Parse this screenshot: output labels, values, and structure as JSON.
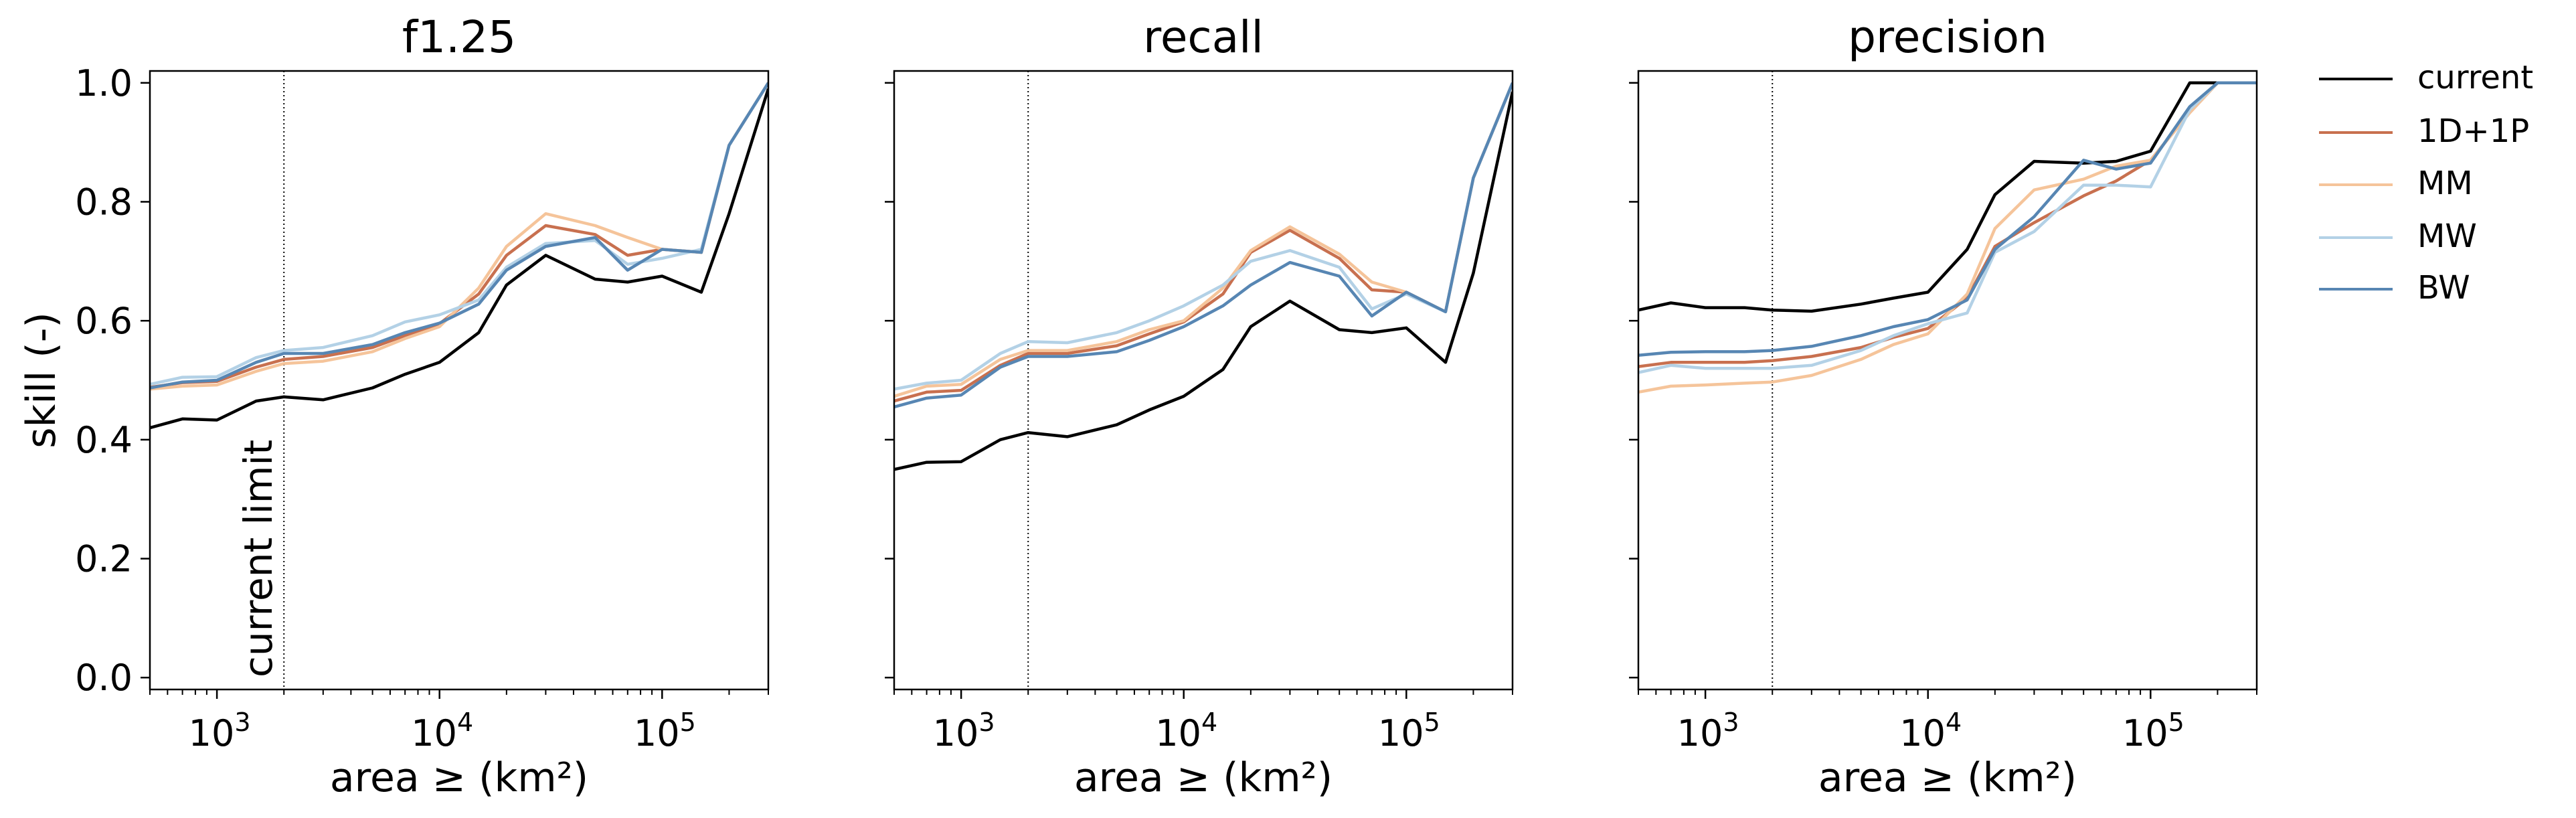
{
  "chart_data": [
    {
      "type": "line",
      "title": "f1.25",
      "xlabel": "area ≥ (km²)",
      "ylabel": "skill (-)",
      "xscale": "log",
      "xlim": [
        500,
        300000
      ],
      "ylim": [
        -0.02,
        1.02
      ],
      "yticks": [
        "0.0",
        "0.2",
        "0.4",
        "0.6",
        "0.8",
        "1.0"
      ],
      "xticks": [
        {
          "base": "10",
          "exp": "3"
        },
        {
          "base": "10",
          "exp": "4"
        },
        {
          "base": "10",
          "exp": "5"
        }
      ],
      "vline": {
        "x": 2000,
        "label": "current limit"
      },
      "x": [
        500,
        700,
        1000,
        1500,
        2000,
        3000,
        5000,
        7000,
        10000,
        15000,
        20000,
        30000,
        50000,
        70000,
        100000,
        150000,
        200000,
        300000
      ],
      "series": [
        {
          "name": "current",
          "values": [
            0.42,
            0.435,
            0.433,
            0.465,
            0.472,
            0.467,
            0.487,
            0.51,
            0.53,
            0.58,
            0.66,
            0.71,
            0.67,
            0.665,
            0.675,
            0.648,
            0.78,
            0.99
          ]
        },
        {
          "name": "1D+1P",
          "values": [
            0.488,
            0.496,
            0.498,
            0.522,
            0.535,
            0.54,
            0.555,
            0.575,
            0.595,
            0.645,
            0.71,
            0.76,
            0.745,
            0.71,
            0.72,
            0.715,
            0.895,
            1.0
          ]
        },
        {
          "name": "MM",
          "values": [
            0.485,
            0.49,
            0.492,
            0.515,
            0.528,
            0.532,
            0.548,
            0.57,
            0.59,
            0.655,
            0.725,
            0.78,
            0.76,
            0.74,
            0.72,
            0.715,
            0.895,
            1.0
          ]
        },
        {
          "name": "MW",
          "values": [
            0.493,
            0.505,
            0.506,
            0.538,
            0.55,
            0.555,
            0.575,
            0.598,
            0.61,
            0.635,
            0.69,
            0.73,
            0.735,
            0.695,
            0.705,
            0.72,
            0.895,
            1.0
          ]
        },
        {
          "name": "BW",
          "values": [
            0.487,
            0.497,
            0.5,
            0.53,
            0.545,
            0.545,
            0.56,
            0.58,
            0.596,
            0.628,
            0.685,
            0.725,
            0.74,
            0.685,
            0.72,
            0.715,
            0.895,
            1.0
          ]
        }
      ]
    },
    {
      "type": "line",
      "title": "recall",
      "xlabel": "area ≥ (km²)",
      "xscale": "log",
      "xlim": [
        500,
        300000
      ],
      "ylim": [
        -0.02,
        1.02
      ],
      "xticks": [
        {
          "base": "10",
          "exp": "3"
        },
        {
          "base": "10",
          "exp": "4"
        },
        {
          "base": "10",
          "exp": "5"
        }
      ],
      "vline": {
        "x": 2000
      },
      "x": [
        500,
        700,
        1000,
        1500,
        2000,
        3000,
        5000,
        7000,
        10000,
        15000,
        20000,
        30000,
        50000,
        70000,
        100000,
        150000,
        200000,
        300000
      ],
      "series": [
        {
          "name": "current",
          "values": [
            0.35,
            0.362,
            0.363,
            0.4,
            0.412,
            0.405,
            0.425,
            0.45,
            0.473,
            0.518,
            0.59,
            0.633,
            0.585,
            0.58,
            0.588,
            0.53,
            0.68,
            0.985
          ]
        },
        {
          "name": "1D+1P",
          "values": [
            0.465,
            0.48,
            0.483,
            0.525,
            0.545,
            0.545,
            0.558,
            0.578,
            0.598,
            0.645,
            0.715,
            0.752,
            0.705,
            0.652,
            0.648,
            0.615,
            0.84,
            1.0
          ]
        },
        {
          "name": "MM",
          "values": [
            0.473,
            0.49,
            0.493,
            0.535,
            0.55,
            0.55,
            0.565,
            0.585,
            0.6,
            0.655,
            0.718,
            0.758,
            0.712,
            0.665,
            0.648,
            0.615,
            0.84,
            1.0
          ]
        },
        {
          "name": "MW",
          "values": [
            0.485,
            0.495,
            0.5,
            0.545,
            0.565,
            0.563,
            0.58,
            0.6,
            0.625,
            0.66,
            0.7,
            0.718,
            0.69,
            0.62,
            0.645,
            0.615,
            0.84,
            1.0
          ]
        },
        {
          "name": "BW",
          "values": [
            0.455,
            0.47,
            0.475,
            0.522,
            0.54,
            0.54,
            0.548,
            0.567,
            0.59,
            0.625,
            0.66,
            0.698,
            0.675,
            0.608,
            0.648,
            0.615,
            0.84,
            1.0
          ]
        }
      ]
    },
    {
      "type": "line",
      "title": "precision",
      "xlabel": "area ≥ (km²)",
      "xscale": "log",
      "xlim": [
        500,
        300000
      ],
      "ylim": [
        -0.02,
        1.02
      ],
      "xticks": [
        {
          "base": "10",
          "exp": "3"
        },
        {
          "base": "10",
          "exp": "4"
        },
        {
          "base": "10",
          "exp": "5"
        }
      ],
      "vline": {
        "x": 2000
      },
      "x": [
        500,
        700,
        1000,
        1500,
        2000,
        3000,
        5000,
        7000,
        10000,
        15000,
        20000,
        30000,
        50000,
        70000,
        100000,
        150000,
        200000,
        300000
      ],
      "series": [
        {
          "name": "current",
          "values": [
            0.618,
            0.63,
            0.622,
            0.622,
            0.618,
            0.616,
            0.628,
            0.638,
            0.648,
            0.72,
            0.812,
            0.868,
            0.865,
            0.868,
            0.885,
            1.0,
            1.0,
            1.0
          ]
        },
        {
          "name": "1D+1P",
          "values": [
            0.523,
            0.53,
            0.53,
            0.53,
            0.533,
            0.54,
            0.555,
            0.572,
            0.587,
            0.638,
            0.725,
            0.765,
            0.81,
            0.835,
            0.87,
            0.95,
            1.0,
            1.0
          ]
        },
        {
          "name": "MM",
          "values": [
            0.48,
            0.49,
            0.492,
            0.495,
            0.497,
            0.508,
            0.535,
            0.56,
            0.578,
            0.645,
            0.755,
            0.82,
            0.838,
            0.86,
            0.87,
            0.95,
            1.0,
            1.0
          ]
        },
        {
          "name": "MW",
          "values": [
            0.513,
            0.525,
            0.52,
            0.52,
            0.52,
            0.525,
            0.55,
            0.575,
            0.595,
            0.613,
            0.715,
            0.75,
            0.828,
            0.828,
            0.825,
            0.955,
            1.0,
            1.0
          ]
        },
        {
          "name": "BW",
          "values": [
            0.542,
            0.547,
            0.548,
            0.548,
            0.55,
            0.557,
            0.575,
            0.59,
            0.602,
            0.635,
            0.72,
            0.775,
            0.87,
            0.855,
            0.865,
            0.96,
            1.0,
            1.0
          ]
        }
      ]
    }
  ],
  "legend": {
    "placement": "right",
    "entries": [
      {
        "label": "current",
        "color": "#000000"
      },
      {
        "label": "1D+1P",
        "color": "#c8704f"
      },
      {
        "label": "MM",
        "color": "#f5c49a"
      },
      {
        "label": "MW",
        "color": "#b3d1e6"
      },
      {
        "label": "BW",
        "color": "#5786b3"
      }
    ]
  }
}
